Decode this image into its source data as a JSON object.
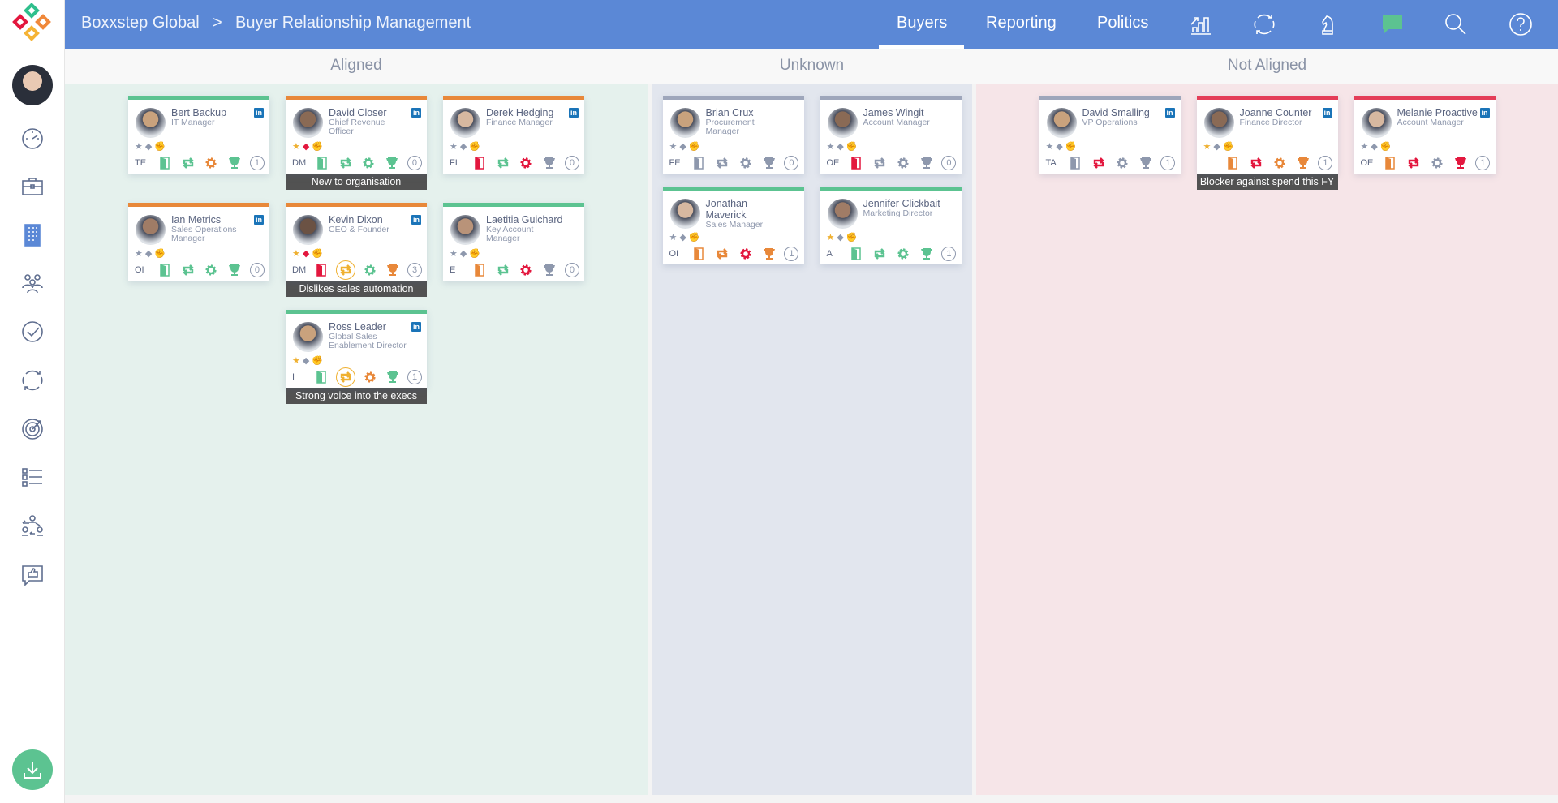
{
  "header": {
    "breadcrumb": [
      "Boxxstep Global",
      ">",
      "Buyer Relationship Management"
    ],
    "tabs": [
      {
        "label": "Buyers",
        "active": true
      },
      {
        "label": "Reporting"
      },
      {
        "label": "Politics"
      }
    ],
    "icons": [
      "chart-growth-icon",
      "refresh-cycle-icon",
      "chess-knight-icon",
      "chat-bubble-icon",
      "search-icon",
      "help-icon"
    ],
    "chat_color": "#5cc391",
    "color": "#5b88d6"
  },
  "sidebar": {
    "icons": [
      "dashboard-gauge-icon",
      "briefcase-icon",
      "building-icon",
      "team-icon",
      "check-circle-icon",
      "cycle-icon",
      "target-icon",
      "checklist-icon",
      "org-swap-icon",
      "feedback-thumb-icon"
    ],
    "active": "building-icon",
    "download": "download-icon"
  },
  "colors": {
    "green": "#5cc391",
    "orange": "#e8883a",
    "red": "#e3173e",
    "grey": "#8e98ad",
    "gold": "#efb030",
    "bar_grey": "#9ea6bb",
    "bar_red": "#e43d58"
  },
  "columns": [
    {
      "id": "aligned",
      "title": "Aligned",
      "cards": [
        {
          "name": "Bert Backup",
          "title": "IT Manager",
          "bar": "green",
          "linkedin": true,
          "small": [
            "grey",
            "grey",
            "grey"
          ],
          "code": "TE",
          "icons": [
            "green",
            "green",
            "orange",
            "green"
          ],
          "count": "1"
        },
        {
          "name": "David Closer",
          "title": "Chief Revenue Officer",
          "bar": "orange",
          "linkedin": true,
          "small": [
            "gold",
            "red",
            "gold"
          ],
          "code": "DM",
          "icons": [
            "green",
            "green",
            "green",
            "green"
          ],
          "count": "0",
          "note": "New to organisation"
        },
        {
          "name": "Derek Hedging",
          "title": "Finance Manager",
          "bar": "orange",
          "linkedin": true,
          "small": [
            "grey",
            "grey",
            "grey"
          ],
          "code": "FI",
          "icons": [
            "red",
            "green",
            "red",
            "grey"
          ],
          "count": "0"
        },
        {
          "name": "Ian Metrics",
          "title": "Sales Operations Manager",
          "bar": "orange",
          "linkedin": true,
          "small": [
            "grey",
            "grey",
            "grey"
          ],
          "code": "OI",
          "icons": [
            "green",
            "green",
            "green",
            "green"
          ],
          "count": "0"
        },
        {
          "name": "Kevin Dixon",
          "title": "CEO & Founder",
          "bar": "orange",
          "linkedin": true,
          "small": [
            "gold",
            "red",
            "gold"
          ],
          "code": "DM",
          "icons": [
            "red",
            "gold-circled",
            "green",
            "orange"
          ],
          "count": "3",
          "note": "Dislikes sales automation"
        },
        {
          "name": "Laetitia Guichard",
          "title": "Key Account Manager",
          "bar": "green",
          "linkedin": false,
          "small": [
            "grey",
            "grey",
            "grey"
          ],
          "code": "E",
          "icons": [
            "orange",
            "green",
            "red",
            "grey"
          ],
          "count": "0"
        },
        {
          "name": "Ross Leader",
          "title": "Global Sales Enablement Director",
          "bar": "green",
          "linkedin": true,
          "small": [
            "gold",
            "grey",
            "gold"
          ],
          "code": "I",
          "icons": [
            "green",
            "gold-circled",
            "orange",
            "green"
          ],
          "count": "1",
          "note": "Strong voice into the execs"
        }
      ]
    },
    {
      "id": "unknown",
      "title": "Unknown",
      "cards": [
        {
          "name": "Brian Crux",
          "title": "Procurement Manager",
          "bar": "bar_grey",
          "linkedin": false,
          "small": [
            "grey",
            "grey",
            "grey"
          ],
          "code": "FE",
          "icons": [
            "grey",
            "grey",
            "grey",
            "grey"
          ],
          "count": "0"
        },
        {
          "name": "James Wingit",
          "title": "Account Manager",
          "bar": "bar_grey",
          "linkedin": false,
          "small": [
            "grey",
            "grey",
            "grey"
          ],
          "code": "OE",
          "icons": [
            "red",
            "grey",
            "grey",
            "grey"
          ],
          "count": "0"
        },
        {
          "name": "Jonathan Maverick",
          "title": "Sales Manager",
          "bar": "green",
          "linkedin": false,
          "small": [
            "grey",
            "grey",
            "grey"
          ],
          "code": "OI",
          "icons": [
            "orange",
            "orange",
            "red",
            "orange"
          ],
          "count": "1"
        },
        {
          "name": "Jennifer Clickbait",
          "title": "Marketing Director",
          "bar": "green",
          "linkedin": false,
          "small": [
            "gold",
            "grey",
            "grey"
          ],
          "code": "A",
          "icons": [
            "green",
            "green",
            "green",
            "green"
          ],
          "count": "1"
        }
      ]
    },
    {
      "id": "notaligned",
      "title": "Not Aligned",
      "cards": [
        {
          "name": "David Smalling",
          "title": "VP Operations",
          "bar": "bar_grey",
          "linkedin": true,
          "small": [
            "grey",
            "grey",
            "grey"
          ],
          "code": "TA",
          "icons": [
            "grey",
            "red",
            "grey",
            "grey"
          ],
          "count": "1"
        },
        {
          "name": "Joanne Counter",
          "title": "Finance Director",
          "bar": "bar_red",
          "linkedin": true,
          "small": [
            "gold",
            "grey",
            "grey"
          ],
          "code": "",
          "icons": [
            "orange",
            "red",
            "orange",
            "orange"
          ],
          "count": "1",
          "note": "Blocker against spend this FY"
        },
        {
          "name": "Melanie Proactive",
          "title": "Account Manager",
          "bar": "bar_red",
          "linkedin": true,
          "small": [
            "grey",
            "grey",
            "grey"
          ],
          "code": "OE",
          "icons": [
            "orange",
            "red",
            "grey",
            "red"
          ],
          "count": "1"
        }
      ]
    }
  ]
}
